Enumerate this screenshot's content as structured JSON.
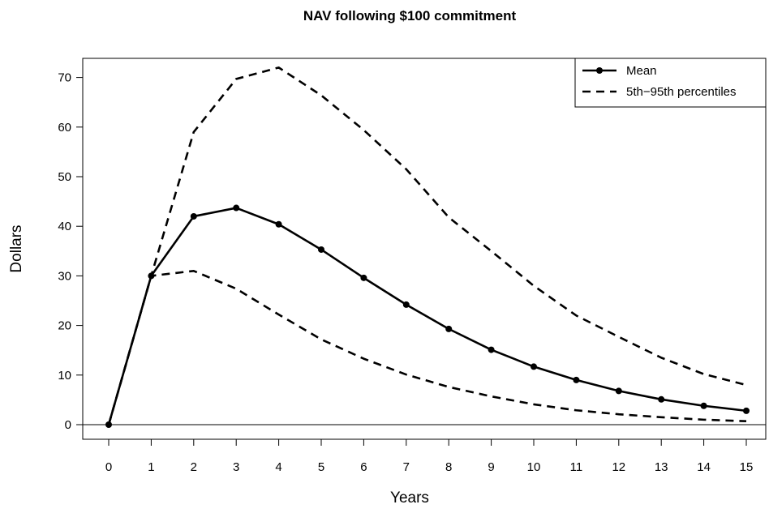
{
  "chart_data": {
    "type": "line",
    "title": "NAV following $100 commitment",
    "xlabel": "Years",
    "ylabel": "Dollars",
    "xlim": [
      0,
      15
    ],
    "ylim": [
      0,
      70
    ],
    "x_ticks": [
      0,
      1,
      2,
      3,
      4,
      5,
      6,
      7,
      8,
      9,
      10,
      11,
      12,
      13,
      14,
      15
    ],
    "y_ticks": [
      0,
      10,
      20,
      30,
      40,
      50,
      60,
      70
    ],
    "grid": false,
    "legend_position": "top-right",
    "x": [
      0,
      1,
      2,
      3,
      4,
      5,
      6,
      7,
      8,
      9,
      10,
      11,
      12,
      13,
      14,
      15
    ],
    "series": [
      {
        "name": "Mean",
        "style": "solid-with-points",
        "values": [
          0,
          30,
          42,
          43.7,
          40.4,
          35.3,
          29.6,
          24.2,
          19.3,
          15.1,
          11.7,
          9.0,
          6.8,
          5.1,
          3.8,
          2.8
        ]
      },
      {
        "name": "5th−95th percentiles",
        "style": "dashed",
        "values": [
          0,
          30,
          59,
          69.7,
          72,
          66.4,
          59.4,
          51.5,
          41.8,
          35,
          28,
          22,
          17.7,
          13.5,
          10.2,
          8
        ]
      },
      {
        "name": "",
        "style": "dashed",
        "values": [
          0,
          30,
          31,
          27.4,
          22.2,
          17.2,
          13.3,
          10.1,
          7.6,
          5.7,
          4.1,
          2.9,
          2.1,
          1.5,
          1.0,
          0.7
        ]
      }
    ],
    "colors": {
      "line": "#000000",
      "background": "#ffffff"
    }
  }
}
